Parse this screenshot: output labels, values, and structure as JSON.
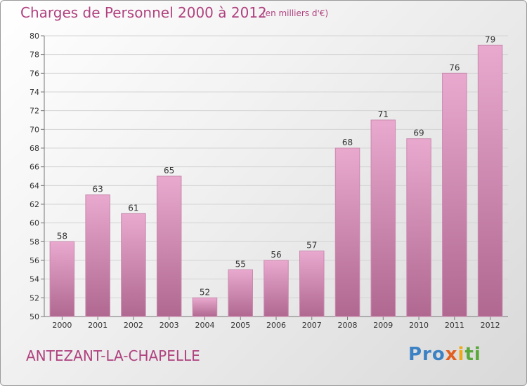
{
  "header": {
    "title": "Charges de Personnel 2000 à 2012",
    "subtitle": "(en milliers d'€)"
  },
  "footer": {
    "commune": "ANTEZANT-LA-CHAPELLE",
    "logo_parts": [
      "Pro",
      "x",
      "i",
      "ti"
    ]
  },
  "colors": {
    "bar_top": "#e9a9cf",
    "bar_bottom": "#b06890",
    "title": "#b0427f"
  },
  "chart_data": {
    "type": "bar",
    "title": "Charges de Personnel 2000 à 2012",
    "subtitle": "(en milliers d'€)",
    "categories": [
      "2000",
      "2001",
      "2002",
      "2003",
      "2004",
      "2005",
      "2006",
      "2007",
      "2008",
      "2009",
      "2010",
      "2011",
      "2012"
    ],
    "values": [
      58,
      63,
      61,
      65,
      52,
      55,
      56,
      57,
      68,
      71,
      69,
      76,
      79
    ],
    "ylim": [
      50,
      80
    ],
    "yticks": [
      50,
      52,
      54,
      56,
      58,
      60,
      62,
      64,
      66,
      68,
      70,
      72,
      74,
      76,
      78,
      80
    ],
    "grid": true
  }
}
